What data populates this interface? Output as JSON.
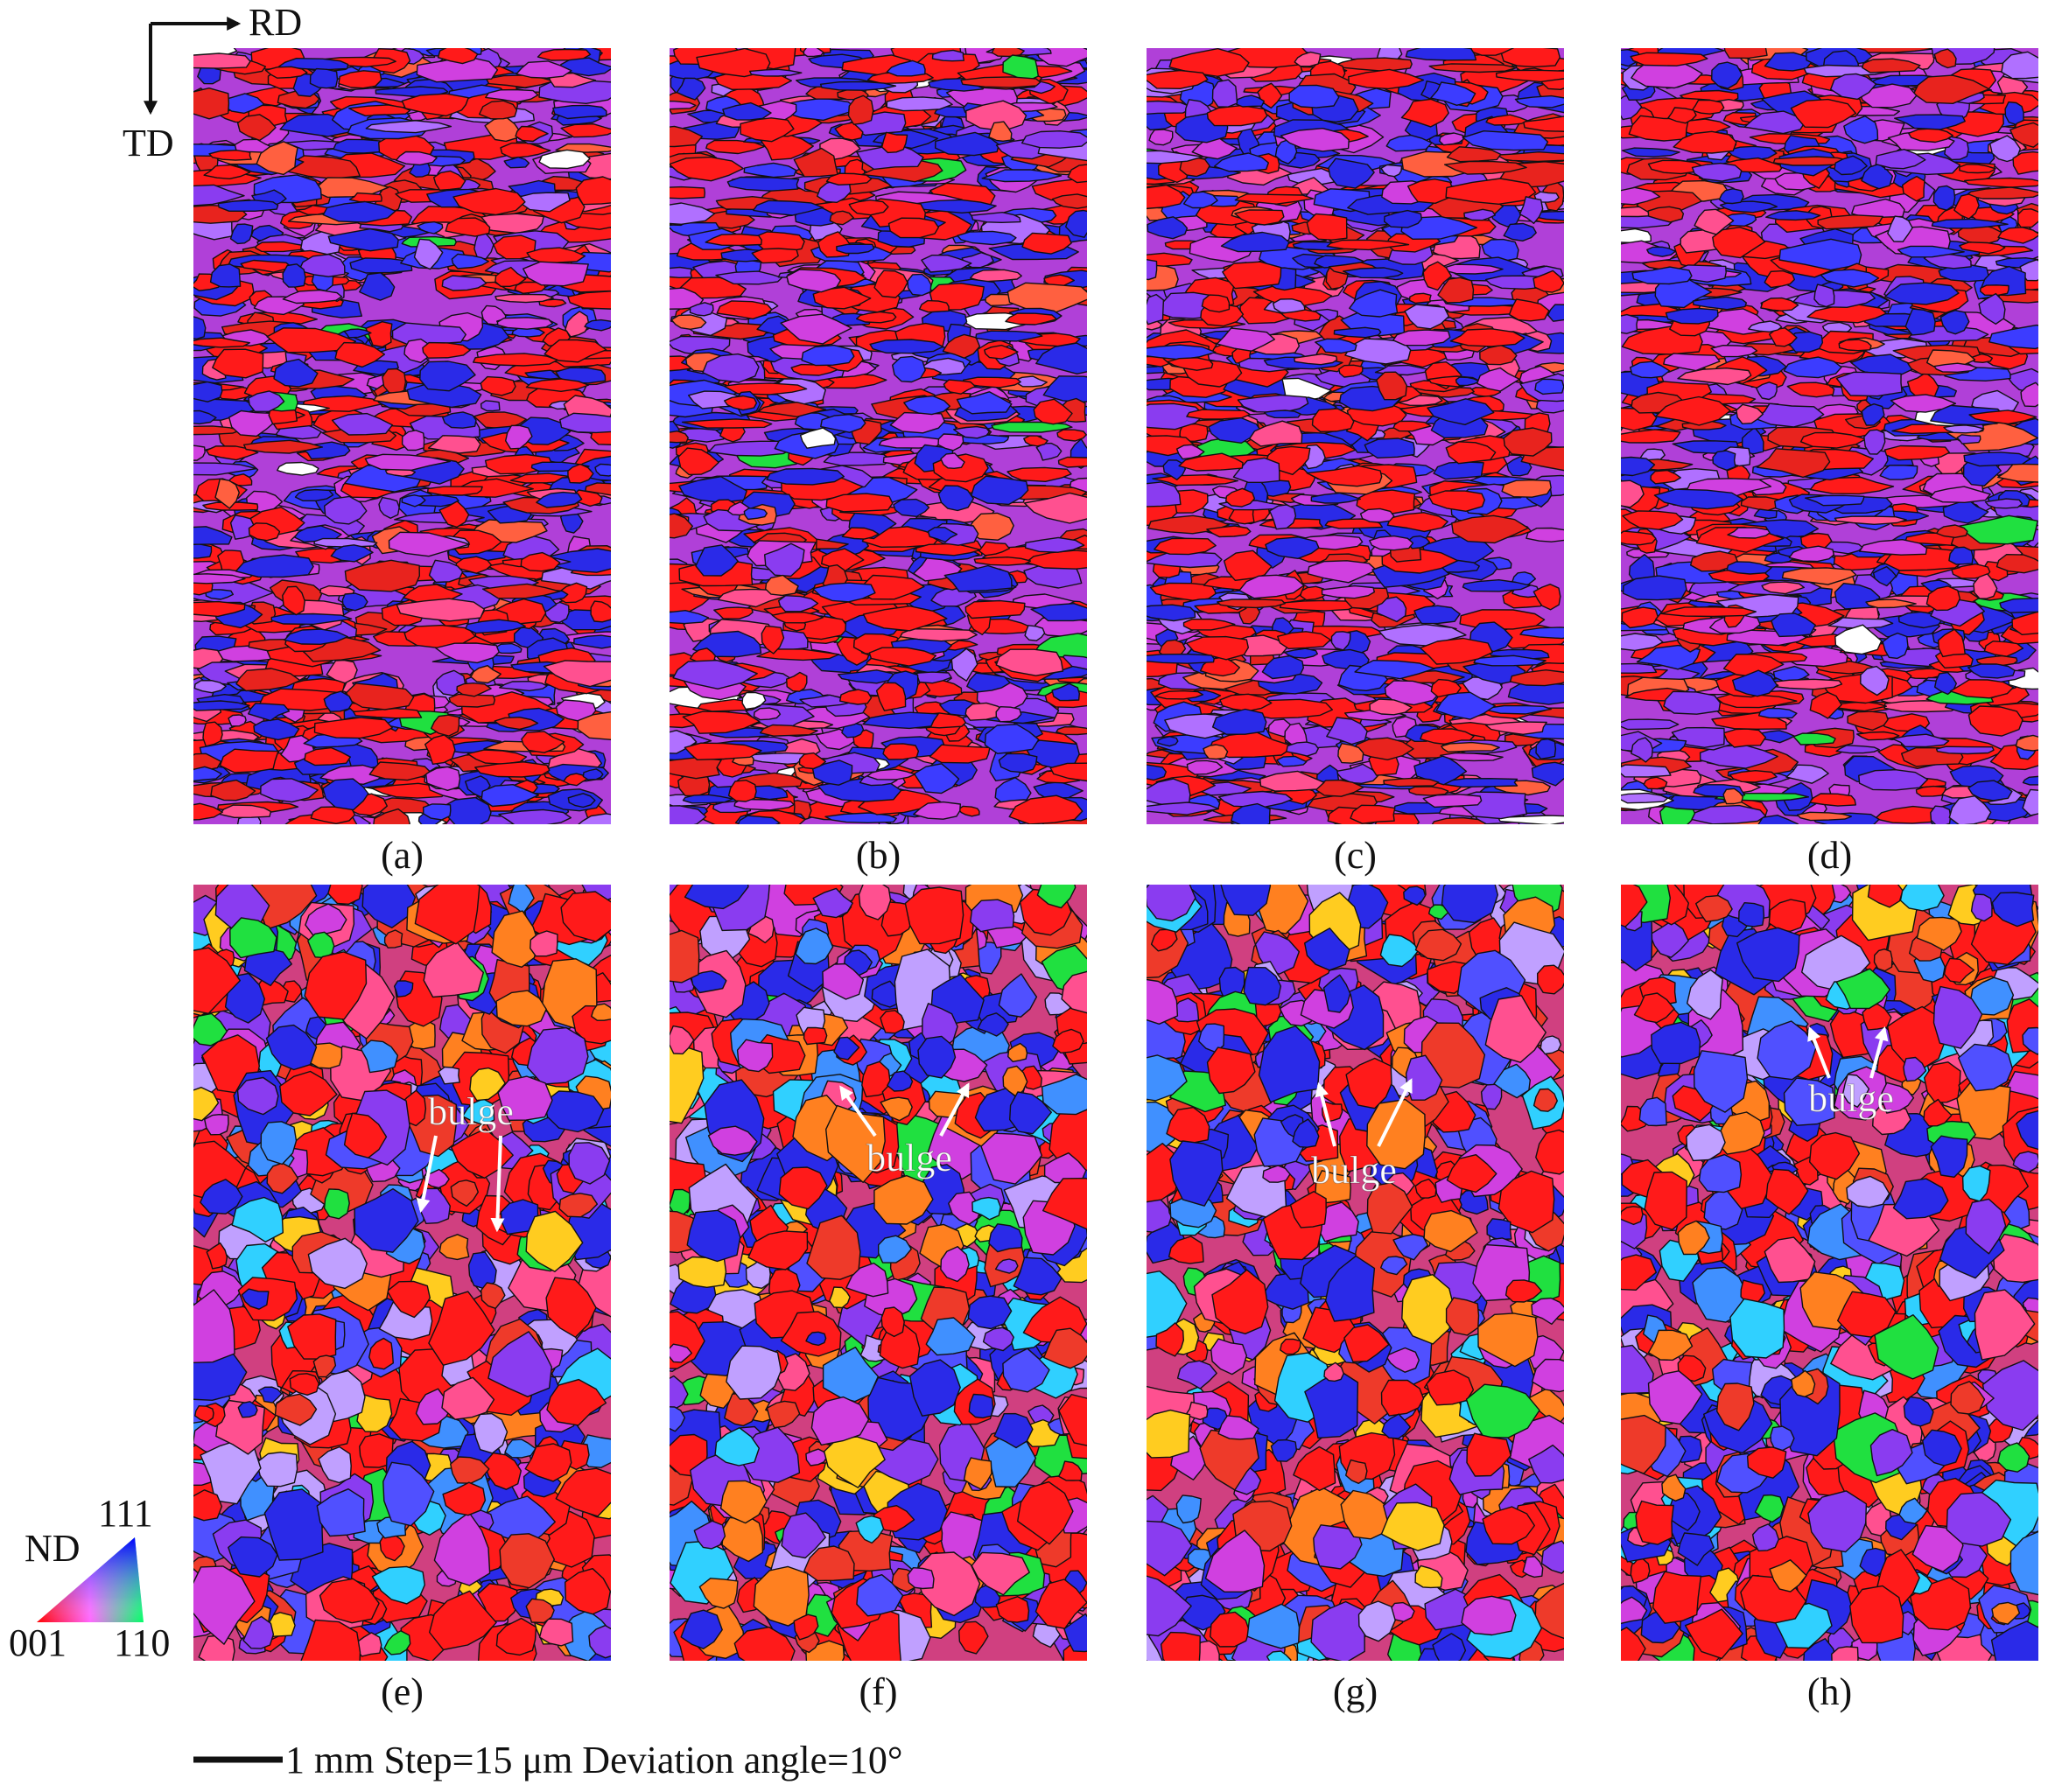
{
  "orientation_axes": {
    "horizontal": "RD",
    "vertical": "TD"
  },
  "panels": [
    {
      "label": "(a)"
    },
    {
      "label": "(b)"
    },
    {
      "label": "(c)"
    },
    {
      "label": "(d)"
    },
    {
      "label": "(e)",
      "annotation": "bulge"
    },
    {
      "label": "(f)",
      "annotation": "bulge"
    },
    {
      "label": "(g)",
      "annotation": "bulge"
    },
    {
      "label": "(h)",
      "annotation": "bulge"
    }
  ],
  "ipf_legend": {
    "title": "ND",
    "corner_111": "111",
    "corner_001": "001",
    "corner_110": "110"
  },
  "scale_bar": "1 mm Step=15 μm Deviation angle=10°"
}
